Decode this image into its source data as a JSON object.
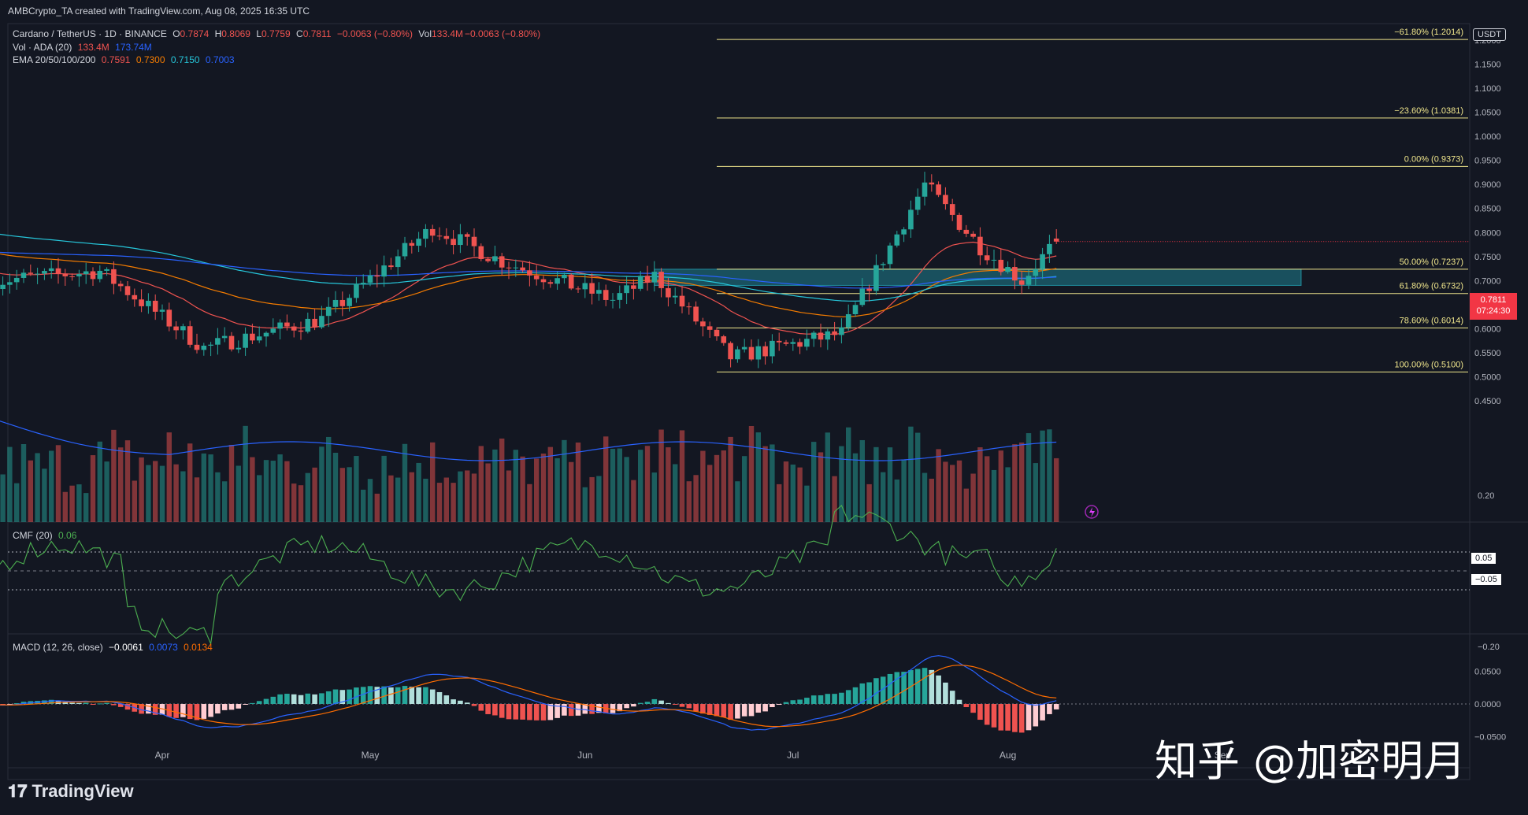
{
  "header_text": "AMBCrypto_TA created with TradingView.com, Aug 08, 2025 16:35 UTC",
  "legend": {
    "symbol": "Cardano / TetherUS · 1D · BINANCE",
    "o_label": "O",
    "o": "0.7874",
    "h_label": "H",
    "h": "0.8069",
    "l_label": "L",
    "l": "0.7759",
    "c_label": "C",
    "c": "0.7811",
    "chg": "−0.0063 (−0.80%)",
    "vol_label": "Vol",
    "vol": "133.4M",
    "vol_chg": "−0.0063 (−0.80%)",
    "vol_ind": "Vol · ADA (20)",
    "vol_ind_v1": "133.4M",
    "vol_ind_v2": "173.74M",
    "ema": "EMA 20/50/100/200",
    "ema20": "0.7591",
    "ema50": "0.7300",
    "ema100": "0.7150",
    "ema200": "0.7003",
    "cmf": "CMF (20)",
    "cmf_val": "0.06",
    "macd": "MACD (12, 26, close)",
    "macd_v1": "−0.0061",
    "macd_v2": "0.0073",
    "macd_v3": "0.0134"
  },
  "currency": "USDT",
  "price_badge": {
    "price": "0.7811",
    "countdown": "07:24:30"
  },
  "cmf_badges": {
    "upper": "0.05",
    "lower": "−0.05"
  },
  "brand": "TradingView",
  "watermark": "知乎 @加密明月",
  "colors": {
    "bg": "#131722",
    "up": "#26a69a",
    "down": "#ef5350",
    "fib": "#f0e68c",
    "zone": "#1f7f8f",
    "ema20": "#ef5350",
    "ema50": "#f57c00",
    "ema100": "#26c6da",
    "ema200": "#2962ff",
    "cmf": "#4caf50",
    "macd": "#2962ff",
    "signal": "#ff6d00"
  },
  "chart_data": [
    {
      "type": "candlestick",
      "title": "Cardano / TetherUS · 1D · BINANCE",
      "x_tick_labels": [
        "Apr",
        "May",
        "Jun",
        "Jul",
        "Aug",
        "Sep"
      ],
      "y_tick_labels": [
        "0.4500",
        "0.5000",
        "0.5500",
        "0.6000",
        "0.6500",
        "0.7000",
        "0.7500",
        "0.8000",
        "0.8500",
        "0.9000",
        "0.9500",
        "1.0000",
        "1.0500",
        "1.1000",
        "1.1500",
        "1.2000"
      ],
      "ylim": [
        0.41,
        1.235
      ],
      "key_points": [
        {
          "date": "Mar 08",
          "close": 0.7
        },
        {
          "date": "Mar 23",
          "close": 0.72
        },
        {
          "date": "Apr 07",
          "close": 0.56
        },
        {
          "date": "Apr 24",
          "close": 0.62
        },
        {
          "date": "May 10",
          "close": 0.81
        },
        {
          "date": "May 20",
          "close": 0.74
        },
        {
          "date": "Jun 05",
          "close": 0.66
        },
        {
          "date": "Jun 11",
          "close": 0.71
        },
        {
          "date": "Jun 22",
          "close": 0.54
        },
        {
          "date": "Jul 08",
          "close": 0.59
        },
        {
          "date": "Jul 20",
          "close": 0.9
        },
        {
          "date": "Jul 28",
          "close": 0.77
        },
        {
          "date": "Aug 03",
          "close": 0.7
        },
        {
          "date": "Aug 08",
          "close": 0.7811
        }
      ],
      "fib_levels": [
        {
          "label": "−61.80% (1.2014)",
          "price": 1.2014
        },
        {
          "label": "−23.60% (1.0381)",
          "price": 1.0381
        },
        {
          "label": "0.00% (0.9373)",
          "price": 0.9373
        },
        {
          "label": "50.00% (0.7237)",
          "price": 0.7237
        },
        {
          "label": "61.80% (0.6732)",
          "price": 0.6732
        },
        {
          "label": "78.60% (0.6014)",
          "price": 0.6014
        },
        {
          "label": "100.00% (0.5100)",
          "price": 0.51
        }
      ],
      "support_zone": [
        0.69,
        0.7237
      ]
    },
    {
      "type": "line",
      "title": "CMF (20)",
      "y_tick_labels": [
        "0.20",
        "−0.20"
      ],
      "levels": [
        0.05,
        -0.05
      ],
      "current": 0.06
    },
    {
      "type": "bar",
      "title": "MACD (12, 26, close)",
      "y_tick_labels": [
        "0.0500",
        "0.0000",
        "−0.0500"
      ],
      "series": [
        {
          "name": "−0.0061",
          "values": [
            -0.0061
          ]
        },
        {
          "name": "0.0073",
          "values": [
            0.0073
          ]
        },
        {
          "name": "0.0134",
          "values": [
            0.0134
          ]
        }
      ]
    }
  ]
}
